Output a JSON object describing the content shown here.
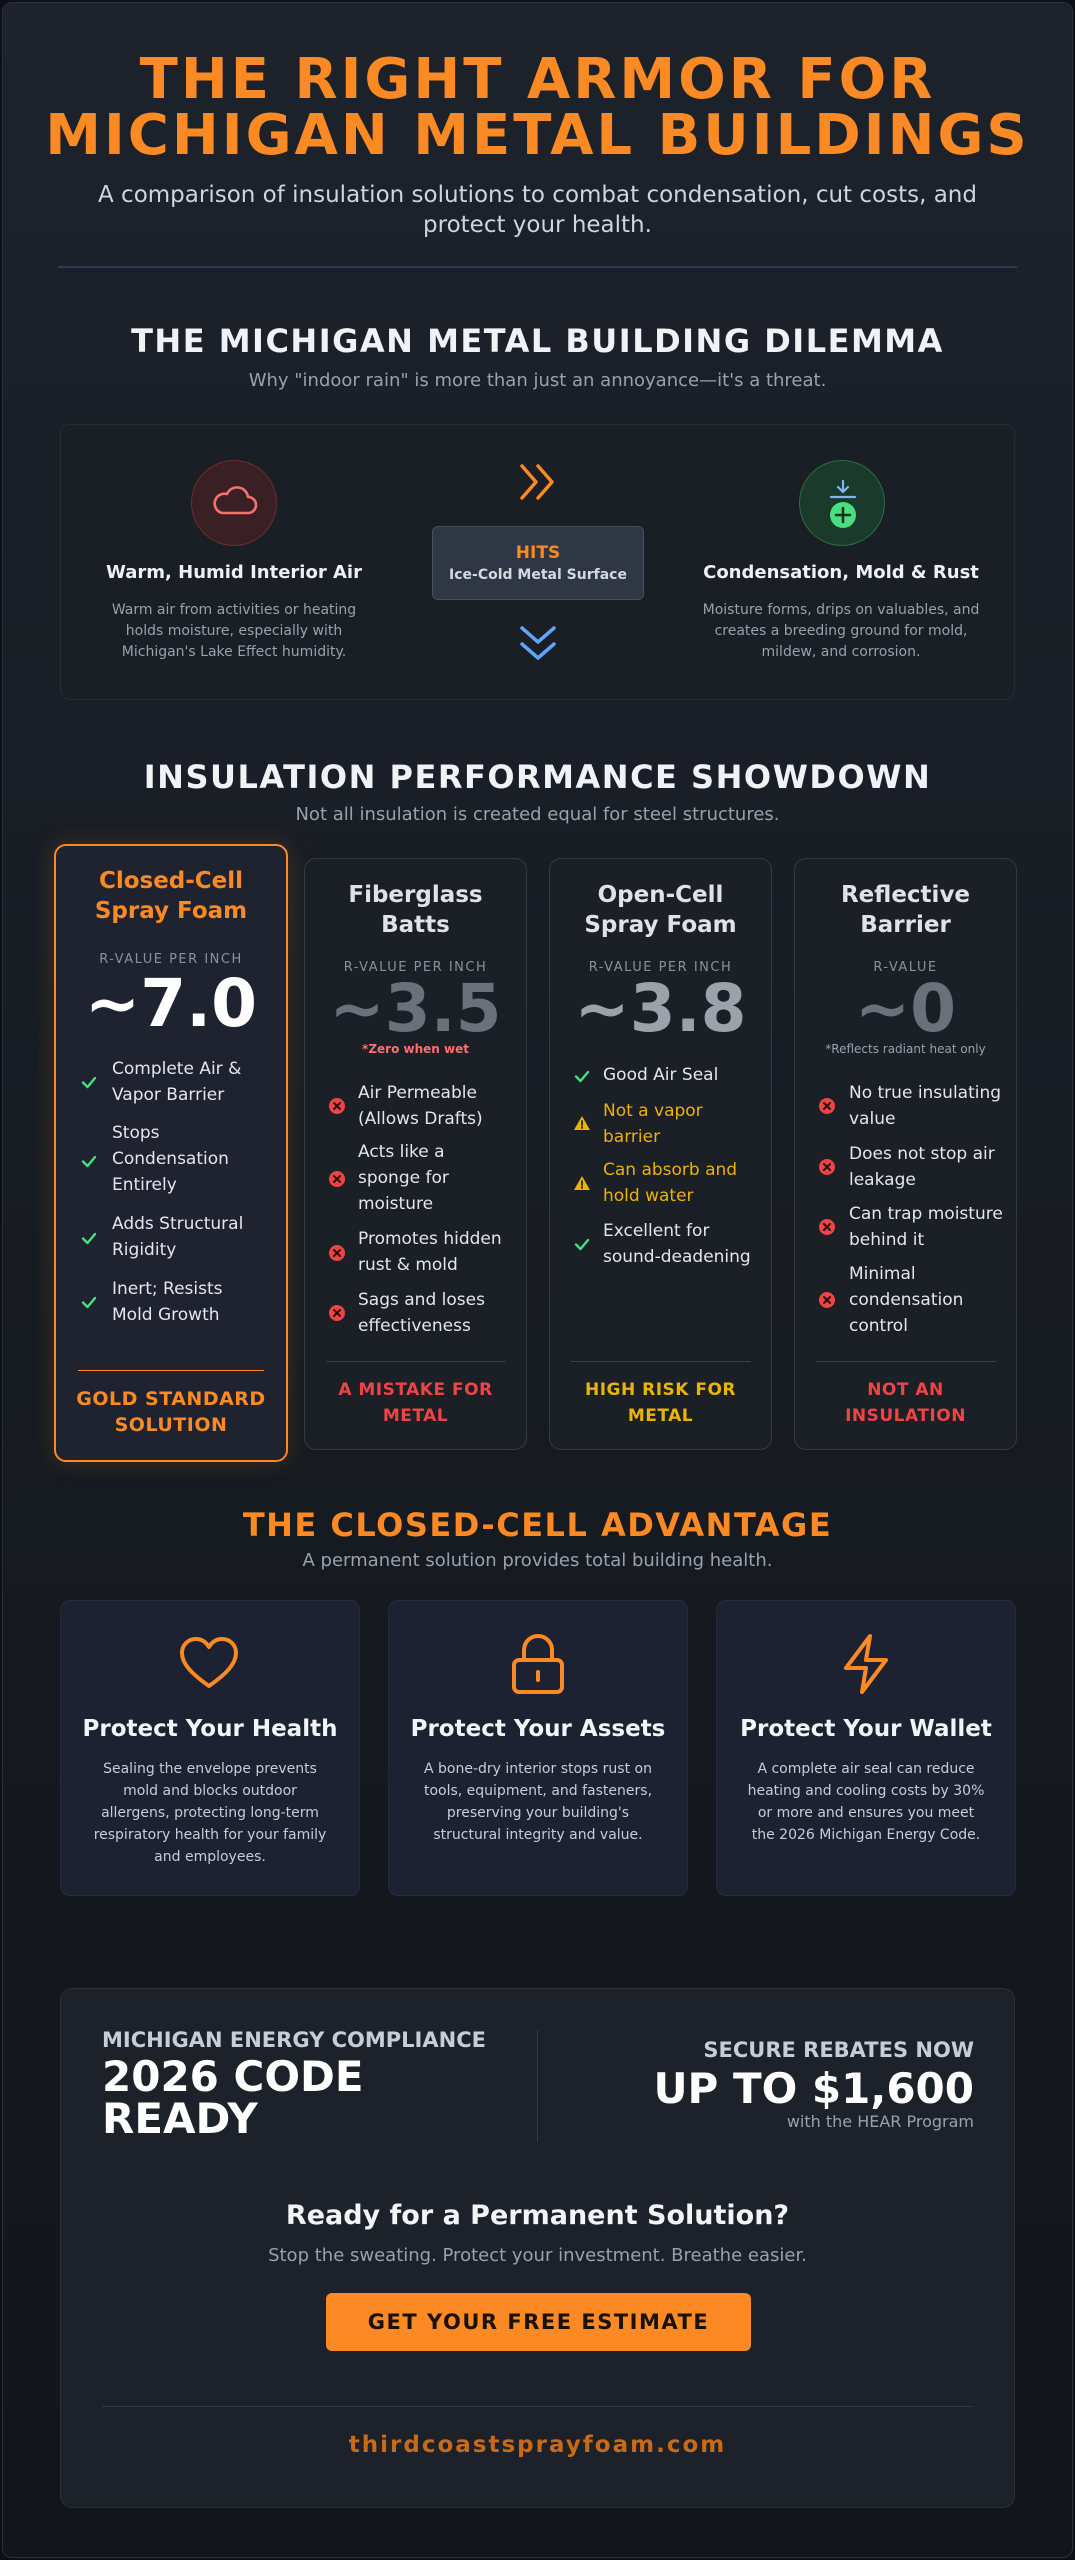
{
  "header": {
    "title_line1": "THE RIGHT ARMOR FOR",
    "title_line2": "MICHIGAN METAL BUILDINGS",
    "subtitle": "A comparison of insulation solutions to combat condensation, cut costs, and protect your health."
  },
  "dilemma": {
    "title": "THE MICHIGAN METAL BUILDING DILEMMA",
    "subtitle": "Why \"indoor rain\" is more than just an annoyance—it's a threat.",
    "left": {
      "icon": "cloud-icon",
      "title": "Warm, Humid Interior Air",
      "text": "Warm air from activities or heating holds moisture, especially with Michigan's Lake Effect humidity."
    },
    "middle": {
      "top_icon": "chevrons-right-icon",
      "label": "HITS",
      "sublabel": "Ice-Cold Metal Surface",
      "bottom_icon": "chevrons-down-icon"
    },
    "right": {
      "icon": "condensation-icon",
      "title": "Condensation, Mold & Rust",
      "text": "Moisture forms, drips on valuables, and creates a breeding ground for mold, mildew, and corrosion."
    }
  },
  "showdown": {
    "title": "INSULATION PERFORMANCE SHOWDOWN",
    "subtitle": "Not all insulation is created equal for steel structures.",
    "cards": [
      {
        "name_line1": "Closed-Cell",
        "name_line2": "Spray Foam",
        "rv_label": "R-VALUE PER INCH",
        "rv_value": "~7.0",
        "rv_note": "",
        "features": [
          {
            "status": "check",
            "line1": "Complete Air &",
            "line2": "Vapor Barrier",
            "line3": ""
          },
          {
            "status": "check",
            "line1": "Stops",
            "line2": "Condensation",
            "line3": "Entirely"
          },
          {
            "status": "check",
            "line1": "Adds Structural",
            "line2": "Rigidity",
            "line3": ""
          },
          {
            "status": "check",
            "line1": "Inert; Resists",
            "line2": "Mold Growth",
            "line3": ""
          }
        ],
        "verdict_line1": "GOLD STANDARD",
        "verdict_line2": "SOLUTION"
      },
      {
        "name_line1": "Fiberglass",
        "name_line2": "Batts",
        "rv_label": "R-VALUE PER INCH",
        "rv_value": "~3.5",
        "rv_note": "*Zero when wet",
        "features": [
          {
            "status": "x",
            "line1": "Air Permeable",
            "line2": "(Allows Drafts)",
            "line3": ""
          },
          {
            "status": "x",
            "line1": "Acts like a",
            "line2": "sponge for",
            "line3": "moisture"
          },
          {
            "status": "x",
            "line1": "Promotes hidden",
            "line2": "rust & mold",
            "line3": ""
          },
          {
            "status": "x",
            "line1": "Sags and loses",
            "line2": "effectiveness",
            "line3": ""
          }
        ],
        "verdict_line1": "A MISTAKE FOR",
        "verdict_line2": "METAL"
      },
      {
        "name_line1": "Open-Cell",
        "name_line2": "Spray Foam",
        "rv_label": "R-VALUE PER INCH",
        "rv_value": "~3.8",
        "rv_note": "",
        "features": [
          {
            "status": "check",
            "line1": "Good Air Seal",
            "line2": "",
            "line3": ""
          },
          {
            "status": "warn",
            "line1": "Not a vapor",
            "line2": "barrier",
            "line3": ""
          },
          {
            "status": "warn",
            "line1": "Can absorb and",
            "line2": "hold water",
            "line3": ""
          },
          {
            "status": "check",
            "line1": "Excellent for",
            "line2": "sound-deadening",
            "line3": ""
          }
        ],
        "verdict_line1": "HIGH RISK FOR",
        "verdict_line2": "METAL"
      },
      {
        "name_line1": "Reflective",
        "name_line2": "Barrier",
        "rv_label": "R-VALUE",
        "rv_value": "~0",
        "rv_note": "*Reflects radiant heat only",
        "features": [
          {
            "status": "x",
            "line1": "No true insulating",
            "line2": "value",
            "line3": ""
          },
          {
            "status": "x",
            "line1": "Does not stop air",
            "line2": "leakage",
            "line3": ""
          },
          {
            "status": "x",
            "line1": "Can trap moisture",
            "line2": "behind it",
            "line3": ""
          },
          {
            "status": "x",
            "line1": "Minimal",
            "line2": "condensation",
            "line3": "control"
          }
        ],
        "verdict_line1": "NOT AN",
        "verdict_line2": "INSULATION"
      }
    ]
  },
  "advantage": {
    "title": "THE CLOSED-CELL ADVANTAGE",
    "subtitle": "A permanent solution provides total building health.",
    "items": [
      {
        "icon": "heart-icon",
        "title": "Protect Your Health",
        "text": "Sealing the envelope prevents mold and blocks outdoor allergens, protecting long-term respiratory health for your family and employees."
      },
      {
        "icon": "lock-icon",
        "title": "Protect Your Assets",
        "text": "A bone-dry interior stops rust on tools, equipment, and fasteners, preserving your building's structural integrity and value."
      },
      {
        "icon": "lightning-icon",
        "title": "Protect Your Wallet",
        "text": "A complete air seal can reduce heating and cooling costs by 30% or more and ensures you meet the 2026 Michigan Energy Code."
      }
    ]
  },
  "cta": {
    "compliance_label": "MICHIGAN ENERGY COMPLIANCE",
    "compliance_value_line1": "2026 CODE",
    "compliance_value_line2": "READY",
    "rebate_label": "SECURE REBATES NOW",
    "rebate_value": "UP TO $1,600",
    "rebate_note": "with the HEAR Program",
    "heading": "Ready for a Permanent Solution?",
    "tagline": "Stop the sweating. Protect your investment. Breathe easier.",
    "button_label": "GET YOUR FREE ESTIMATE",
    "website": "thirdcoastsprayfoam.com"
  },
  "colors": {
    "accent": "#fb8a24",
    "check": "#4ade80",
    "danger": "#ef4444",
    "warning": "#eab308"
  }
}
